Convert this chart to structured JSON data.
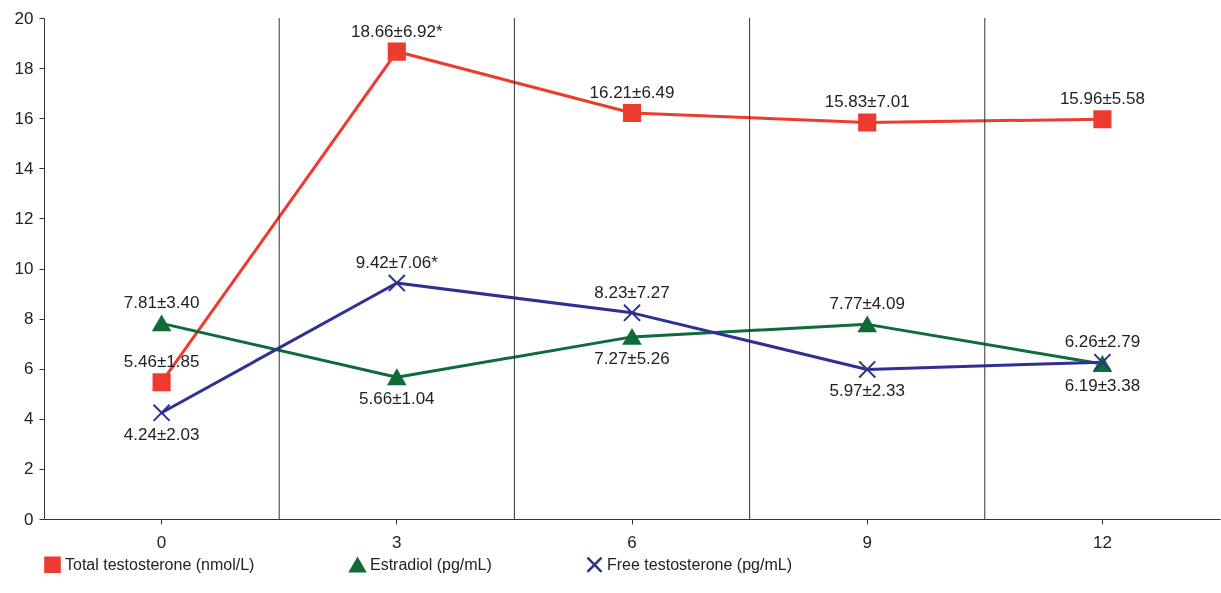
{
  "chart_data": {
    "type": "line",
    "categories": [
      "0",
      "3",
      "6",
      "9",
      "12"
    ],
    "ylim": [
      0,
      20
    ],
    "yticks": [
      0,
      2,
      4,
      6,
      8,
      10,
      12,
      14,
      16,
      18,
      20
    ],
    "grid": "x",
    "legend": "bottom",
    "line_style": "solid",
    "series": [
      {
        "name": "Total testosterone (nmol/L)",
        "color": "#ee3b2f",
        "marker": "square",
        "values": [
          5.46,
          18.66,
          16.21,
          15.83,
          15.96
        ],
        "value_labels": [
          "5.46±1.85",
          "18.66±6.92*",
          "16.21±6.49",
          "15.83±7.01",
          "15.96±5.58"
        ]
      },
      {
        "name": "Estradiol (pg/mL)",
        "color": "#0f6b3a",
        "marker": "triangle",
        "values": [
          7.81,
          5.66,
          7.27,
          7.77,
          6.19
        ],
        "value_labels": [
          "7.81±3.40",
          "5.66±1.04",
          "7.27±5.26",
          "7.77±4.09",
          "6.19±3.38"
        ]
      },
      {
        "name": "Free testosterone (pg/mL)",
        "color": "#2e3192",
        "marker": "cross",
        "values": [
          4.24,
          9.42,
          8.23,
          5.97,
          6.26
        ],
        "value_labels": [
          "4.24±2.03",
          "9.42±7.06*",
          "8.23±7.27",
          "5.97±2.33",
          "6.26±2.79"
        ]
      }
    ]
  }
}
